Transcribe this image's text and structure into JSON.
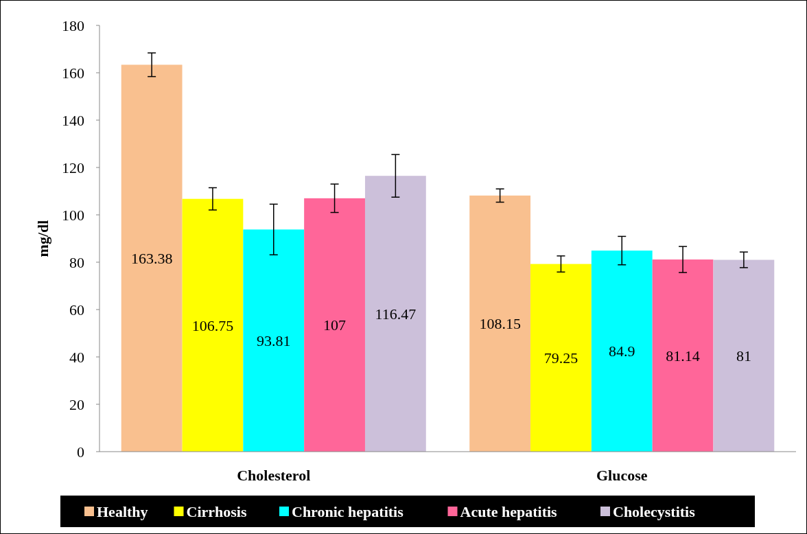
{
  "chart_data": {
    "type": "bar",
    "ylabel": "mg/dl",
    "categories": [
      "Cholesterol",
      "Glucose"
    ],
    "series": [
      {
        "name": "Healthy",
        "color": "#f9c08f",
        "values": [
          163.38,
          108.15
        ],
        "errors": [
          5,
          2.8
        ]
      },
      {
        "name": "Cirrhosis",
        "color": "#ffff00",
        "values": [
          106.75,
          79.25
        ],
        "errors": [
          4.7,
          3.4
        ]
      },
      {
        "name": "Chronic hepatitis",
        "color": "#00ffff",
        "values": [
          93.81,
          84.9
        ],
        "errors": [
          10.7,
          6
        ]
      },
      {
        "name": "Acute hepatitis",
        "color": "#ff6699",
        "values": [
          107,
          81.14
        ],
        "errors": [
          6,
          5.5
        ]
      },
      {
        "name": "Cholecystitis",
        "color": "#ccc0da",
        "values": [
          116.47,
          81
        ],
        "errors": [
          9,
          3.3
        ]
      }
    ],
    "ylim": [
      0,
      180
    ],
    "yticks": [
      0,
      20,
      40,
      60,
      80,
      100,
      120,
      140,
      160,
      180
    ],
    "grid": false,
    "legend": "bottom",
    "data_labels": true
  }
}
